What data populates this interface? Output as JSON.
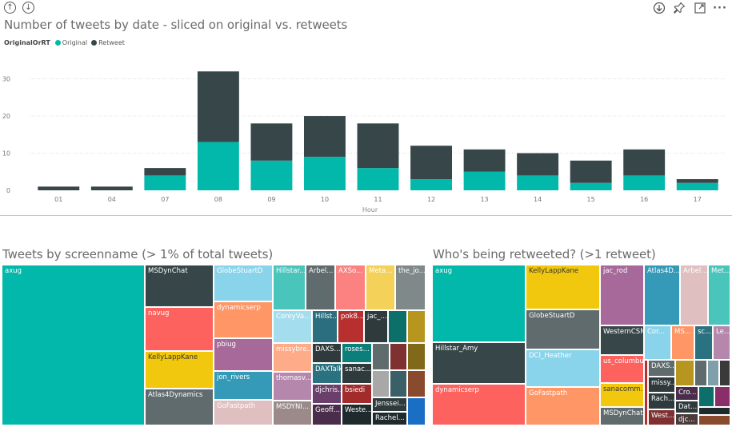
{
  "toolbar": {
    "up_icon": "arrow-up-circle-icon",
    "down_icon": "arrow-down-circle-icon",
    "download_icon": "download-icon",
    "pin_icon": "pin-icon",
    "focus_icon": "focus-mode-icon",
    "more_label": "···"
  },
  "colors": {
    "original": "#01B8AA",
    "retweet": "#374649"
  },
  "legend": {
    "title": "OriginalOrRT",
    "items": [
      "Original",
      "Retweet"
    ]
  },
  "chart_data": {
    "type": "bar",
    "stacked": true,
    "title": "Number of tweets by date - sliced on original vs. retweets",
    "xlabel": "Hour",
    "ylabel": "",
    "categories": [
      "01",
      "04",
      "07",
      "08",
      "09",
      "10",
      "11",
      "12",
      "13",
      "14",
      "15",
      "16",
      "17"
    ],
    "series": [
      {
        "name": "Original",
        "values": [
          0,
          0,
          4,
          13,
          8,
          9,
          6,
          3,
          5,
          4,
          2,
          4,
          2
        ]
      },
      {
        "name": "Retweet",
        "values": [
          1,
          1,
          2,
          19,
          10,
          11,
          12,
          9,
          6,
          6,
          6,
          7,
          1
        ]
      }
    ],
    "yticks": [
      0,
      10,
      20,
      30
    ],
    "ylim": [
      0,
      34
    ],
    "grid": true
  },
  "treemap_left": {
    "title": "Tweets by screenname (> 1% of total tweets)",
    "labels": [
      "axug",
      "MSDynChat",
      "navug",
      "KellyLappKane",
      "Atlas4Dynamics",
      "GlobeStuartD",
      "dynamicserp",
      "pbiug",
      "jon_rivers",
      "GoFastpath",
      "Hillstar...",
      "Arbel...",
      "AXSo...",
      "Meta...",
      "the_jo...",
      "CoreyVa...",
      "Hillst...",
      "pok8...",
      "jac_...",
      "missybre...",
      "DAXS...",
      "roses...",
      "thomasv...",
      "DAXTalk",
      "sanac...",
      "djchris...",
      "bsiedi",
      "MSDYNI...",
      "Geoff...",
      "Weste...",
      "Jenssei...",
      "Rachel..."
    ]
  },
  "treemap_right": {
    "title": "Who's being retweeted? (>1 retweet)",
    "labels": [
      "axug",
      "Hillstar_Amy",
      "dynamicserp",
      "KellyLappKane",
      "GlobeStuartD",
      "DCI_Heather",
      "GoFastpath",
      "jac_rod",
      "WesternCSM",
      "us_columbus",
      "sanacomm...",
      "MSDynChat",
      "Atlas4D...",
      "Arbel...",
      "Met...",
      "Cor...",
      "MS...",
      "sc...",
      "Le...",
      "DAXS...",
      "missy...",
      "Rach...",
      "West...",
      "Cro...",
      "Dat...",
      "djc..."
    ]
  }
}
